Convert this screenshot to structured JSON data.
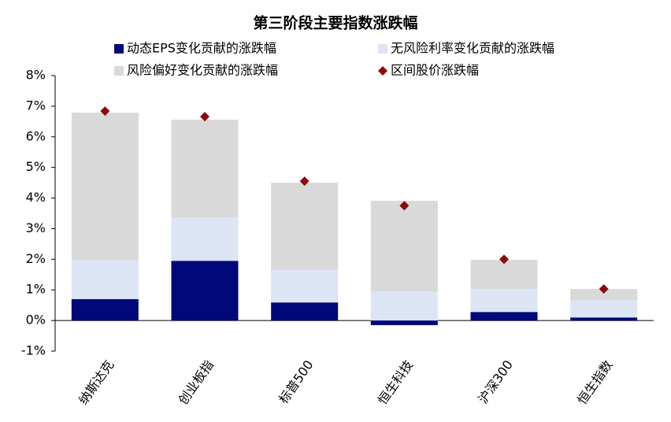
{
  "chart_data": {
    "type": "stacked-bar-with-markers",
    "title": "第三阶段主要指数涨跌幅",
    "categories": [
      "纳斯达克",
      "创业板指",
      "标普500",
      "恒生科技",
      "沪深300",
      "恒生指数"
    ],
    "series": [
      {
        "name": "动态EPS变化贡献的涨跌幅",
        "color": "#00087a",
        "kind": "bar",
        "values": [
          0.7,
          1.95,
          0.59,
          -0.15,
          0.28,
          0.1
        ]
      },
      {
        "name": "无风险利率变化贡献的涨跌幅",
        "color": "#dde4f4",
        "kind": "bar",
        "values": [
          1.28,
          1.42,
          1.06,
          0.95,
          0.75,
          0.57
        ]
      },
      {
        "name": "风险偏好变化贡献的涨跌幅",
        "color": "#d9d9d9",
        "kind": "bar",
        "values": [
          4.81,
          3.19,
          2.85,
          2.96,
          0.95,
          0.36
        ]
      },
      {
        "name": "区间股价涨跌幅",
        "color": "#8b0a0a",
        "kind": "marker",
        "values": [
          6.84,
          6.66,
          4.55,
          3.75,
          2.0,
          1.03
        ]
      }
    ],
    "ylim": [
      -1,
      8
    ],
    "yticks": [
      {
        "value": -1,
        "label": "-1%"
      },
      {
        "value": 0,
        "label": "0%"
      },
      {
        "value": 1,
        "label": "1%"
      },
      {
        "value": 2,
        "label": "2%"
      },
      {
        "value": 3,
        "label": "3%"
      },
      {
        "value": 4,
        "label": "4%"
      },
      {
        "value": 5,
        "label": "5%"
      },
      {
        "value": 6,
        "label": "6%"
      },
      {
        "value": 7,
        "label": "7%"
      },
      {
        "value": 8,
        "label": "8%"
      }
    ]
  }
}
